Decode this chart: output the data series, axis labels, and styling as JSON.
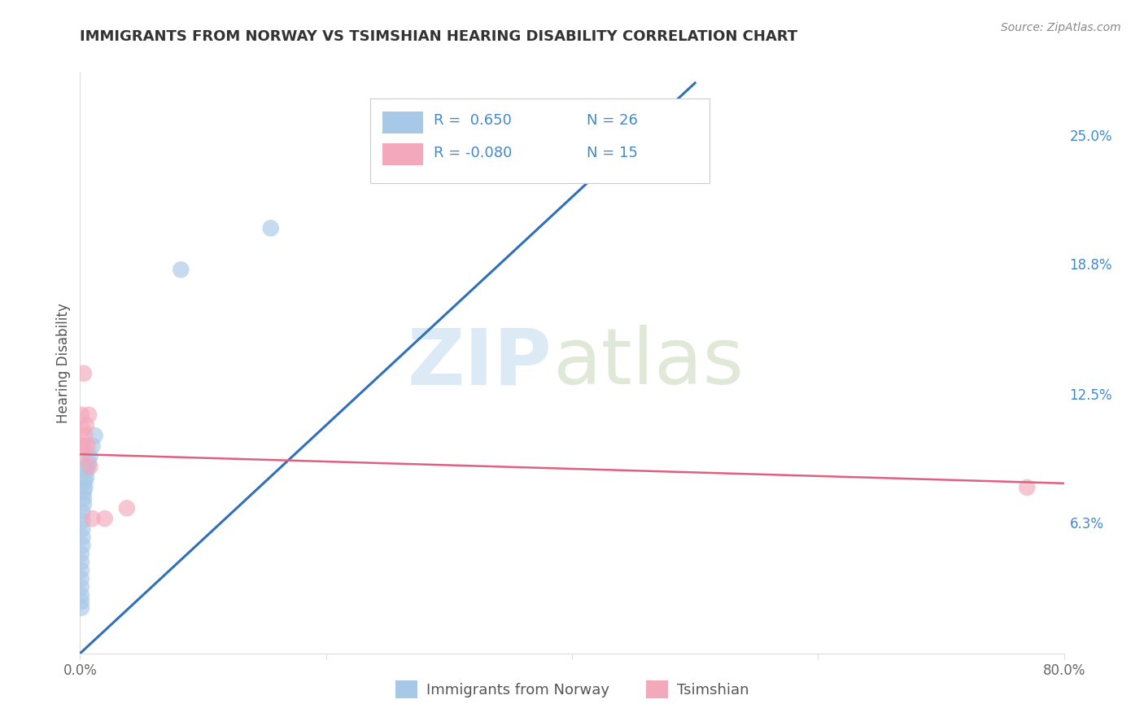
{
  "title": "IMMIGRANTS FROM NORWAY VS TSIMSHIAN HEARING DISABILITY CORRELATION CHART",
  "source": "Source: ZipAtlas.com",
  "ylabel": "Hearing Disability",
  "xlim": [
    0.0,
    0.8
  ],
  "ylim": [
    0.0,
    0.28
  ],
  "right_yticks": [
    0.063,
    0.125,
    0.188,
    0.25
  ],
  "right_yticklabels": [
    "6.3%",
    "12.5%",
    "18.8%",
    "25.0%"
  ],
  "blue_color": "#A8C8E8",
  "pink_color": "#F4A8BC",
  "blue_line_color": "#3070B8",
  "pink_line_color": "#E06080",
  "grid_color": "#CCCCCC",
  "background_color": "#FFFFFF",
  "title_color": "#333333",
  "axis_label_color": "#555555",
  "tick_label_color": "#666666",
  "right_label_color": "#4488CC",
  "legend_text_color": "#4488CC",
  "blue_scatter_x": [
    0.001,
    0.001,
    0.001,
    0.001,
    0.001,
    0.001,
    0.001,
    0.001,
    0.002,
    0.002,
    0.002,
    0.002,
    0.002,
    0.003,
    0.003,
    0.003,
    0.004,
    0.004,
    0.005,
    0.005,
    0.006,
    0.007,
    0.008,
    0.01,
    0.012,
    0.082,
    0.155
  ],
  "blue_scatter_y": [
    0.022,
    0.025,
    0.028,
    0.032,
    0.036,
    0.04,
    0.044,
    0.048,
    0.052,
    0.056,
    0.06,
    0.064,
    0.068,
    0.072,
    0.075,
    0.078,
    0.08,
    0.083,
    0.085,
    0.088,
    0.09,
    0.092,
    0.095,
    0.1,
    0.105,
    0.185,
    0.205
  ],
  "pink_scatter_x": [
    0.001,
    0.001,
    0.002,
    0.002,
    0.003,
    0.003,
    0.004,
    0.005,
    0.006,
    0.007,
    0.008,
    0.01,
    0.02,
    0.038,
    0.77
  ],
  "pink_scatter_y": [
    0.1,
    0.115,
    0.095,
    0.108,
    0.1,
    0.135,
    0.105,
    0.11,
    0.1,
    0.115,
    0.09,
    0.065,
    0.065,
    0.07,
    0.08
  ],
  "blue_line_x0": 0.0,
  "blue_line_y0": 0.0,
  "blue_line_x1": 0.5,
  "blue_line_y1": 0.275,
  "pink_line_x0": 0.0,
  "pink_line_y0": 0.096,
  "pink_line_x1": 0.8,
  "pink_line_y1": 0.082
}
